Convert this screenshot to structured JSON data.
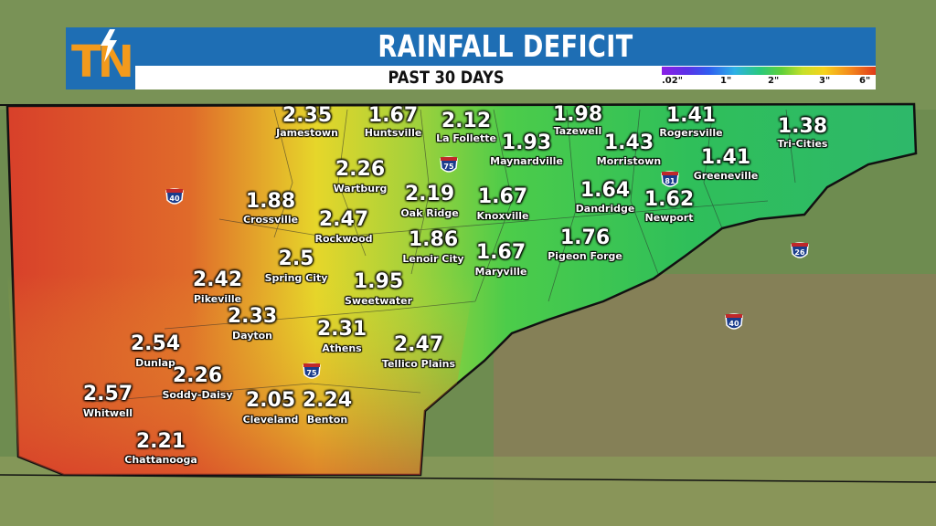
{
  "header": {
    "title": "RAINFALL DEFICIT",
    "subtitle": "PAST 30 DAYS",
    "logo": "TN"
  },
  "legend": {
    "labels": [
      ".02\"",
      "1\"",
      "2\"",
      "3\"",
      "6\""
    ],
    "colors": [
      "#8b1fe6",
      "#2f5df0",
      "#29c97c",
      "#f7d21c",
      "#e03a1a"
    ]
  },
  "colors": {
    "header_blue": "#1e6eb4",
    "logo_orange": "#f39a1c",
    "green": "#2fbf5a",
    "yellow": "#e6d62a",
    "red": "#d8402a"
  },
  "interstates": [
    "40",
    "75",
    "81",
    "26",
    "40",
    "75"
  ],
  "locations": [
    {
      "name": "Jamestown",
      "value": "2.35"
    },
    {
      "name": "Huntsville",
      "value": "1.67"
    },
    {
      "name": "La Follette",
      "value": "2.12"
    },
    {
      "name": "Tazewell",
      "value": "1.98"
    },
    {
      "name": "Rogersville",
      "value": "1.41"
    },
    {
      "name": "Tri-Cities",
      "value": "1.38"
    },
    {
      "name": "Maynardville",
      "value": "1.93"
    },
    {
      "name": "Morristown",
      "value": "1.43"
    },
    {
      "name": "Greeneville",
      "value": "1.41"
    },
    {
      "name": "Wartburg",
      "value": "2.26"
    },
    {
      "name": "Crossville",
      "value": "1.88"
    },
    {
      "name": "Oak Ridge",
      "value": "2.19"
    },
    {
      "name": "Knoxville",
      "value": "1.67"
    },
    {
      "name": "Dandridge",
      "value": "1.64"
    },
    {
      "name": "Newport",
      "value": "1.62"
    },
    {
      "name": "Rockwood",
      "value": "2.47"
    },
    {
      "name": "Lenoir City",
      "value": "1.86"
    },
    {
      "name": "Maryville",
      "value": "1.67"
    },
    {
      "name": "Pigeon Forge",
      "value": "1.76"
    },
    {
      "name": "Spring City",
      "value": "2.5"
    },
    {
      "name": "Pikeville",
      "value": "2.42"
    },
    {
      "name": "Sweetwater",
      "value": "1.95"
    },
    {
      "name": "Dayton",
      "value": "2.33"
    },
    {
      "name": "Athens",
      "value": "2.31"
    },
    {
      "name": "Tellico Plains",
      "value": "2.47"
    },
    {
      "name": "Dunlap",
      "value": "2.54"
    },
    {
      "name": "Soddy-Daisy",
      "value": "2.26"
    },
    {
      "name": "Whitwell",
      "value": "2.57"
    },
    {
      "name": "Cleveland",
      "value": "2.05"
    },
    {
      "name": "Benton",
      "value": "2.24"
    },
    {
      "name": "Chattanooga",
      "value": "2.21"
    }
  ]
}
